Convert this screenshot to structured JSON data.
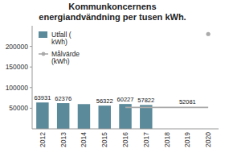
{
  "chart_data": {
    "type": "bar",
    "title": "Kommunkoncernens\nenergiandvändning per tusen kWh.",
    "categories": [
      "2012",
      "2013",
      "2014",
      "2015",
      "2016",
      "2017",
      "2018",
      "2019",
      "2020"
    ],
    "series": [
      {
        "name": "Utfall (\nkWh)",
        "type": "bar",
        "color": "#5b8a9a",
        "values": [
          63931,
          62376,
          60000,
          56322,
          60227,
          57822,
          null,
          null,
          null
        ],
        "value_labels": [
          "63931",
          "62376",
          null,
          "56322",
          "60227",
          "57822",
          null,
          null,
          null
        ]
      },
      {
        "name": "Målvärde\n(kWh)",
        "type": "line",
        "color": "#aaaaaa",
        "values": [
          null,
          null,
          null,
          null,
          52081,
          52081,
          52081,
          52081,
          52081
        ]
      },
      {
        "type": "scatter",
        "color": "#aaaaaa",
        "marker": "circle",
        "values": [
          null,
          null,
          null,
          null,
          null,
          null,
          null,
          null,
          230000
        ]
      }
    ],
    "annotations": [
      {
        "text": "52081"
      }
    ],
    "data_labels": true,
    "ylim": [
      0,
      250000
    ],
    "yticks": [
      50000,
      100000,
      150000,
      200000
    ],
    "grid": false,
    "legend": "upper left"
  }
}
